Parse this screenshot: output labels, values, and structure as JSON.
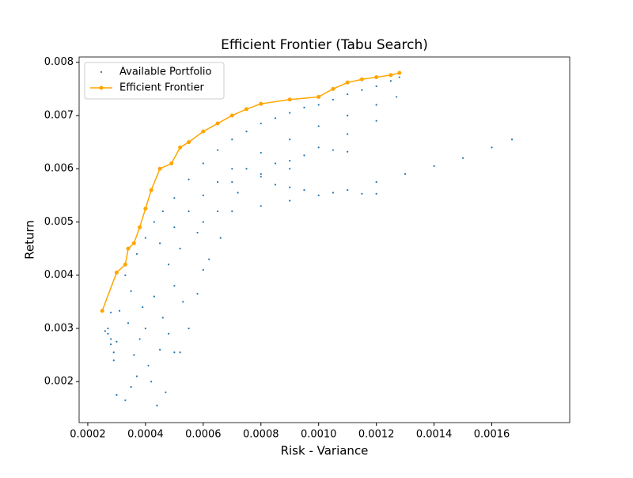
{
  "chart_data": {
    "type": "scatter",
    "title": "Efficient Frontier (Tabu Search)",
    "xlabel": "Risk - Variance",
    "ylabel": "Return",
    "xlim": [
      0.00017,
      0.00187
    ],
    "ylim": [
      0.00123,
      0.0081
    ],
    "xticks": [
      0.0002,
      0.0004,
      0.0006,
      0.0008,
      {
        "value": 0.001,
        "label": "0.0010"
      },
      0.0012,
      0.0014,
      0.0016
    ],
    "yticks": [
      0.002,
      0.003,
      0.004,
      0.005,
      0.006,
      0.007,
      0.008
    ],
    "legend": "upper left",
    "series": [
      {
        "name": "Available Portfolio",
        "color": "#1f77b4",
        "style": "points",
        "x": [
          0.00026,
          0.00027,
          0.00028,
          0.00028,
          0.00029,
          0.00029,
          0.00027,
          0.0003,
          0.00031,
          0.00028,
          0.0003,
          0.00033,
          0.00035,
          0.00037,
          0.00036,
          0.00038,
          0.0004,
          0.00041,
          0.00042,
          0.00044,
          0.00045,
          0.00046,
          0.00048,
          0.0005,
          0.00047,
          0.00052,
          0.00055,
          0.00058,
          0.00053,
          0.0005,
          0.00043,
          0.00039,
          0.00035,
          0.00034,
          0.00062,
          0.00066,
          0.0006,
          0.00033,
          0.00037,
          0.0004,
          0.00043,
          0.00046,
          0.0005,
          0.00055,
          0.0006,
          0.00065,
          0.0007,
          0.00075,
          0.0008,
          0.00085,
          0.0009,
          0.00095,
          0.001,
          0.00105,
          0.0011,
          0.00115,
          0.0012,
          0.00125,
          0.00128,
          0.00045,
          0.0005,
          0.00055,
          0.0006,
          0.00065,
          0.0007,
          0.0008,
          0.0009,
          0.001,
          0.0011,
          0.0012,
          0.00127,
          0.00048,
          0.00052,
          0.00058,
          0.00065,
          0.00072,
          0.0008,
          0.0009,
          0.001,
          0.0011,
          0.0012,
          0.0006,
          0.0007,
          0.0008,
          0.0009,
          0.001,
          0.0011,
          0.0012,
          0.0013,
          0.0014,
          0.0015,
          0.0016,
          0.00167,
          0.00085,
          0.0009,
          0.00095,
          0.00105,
          0.00115,
          0.0012,
          0.00075,
          0.00085,
          0.00095,
          0.00105,
          0.0011,
          0.0007,
          0.0008,
          0.0009
        ],
        "y": [
          0.00295,
          0.0029,
          0.0028,
          0.0027,
          0.00255,
          0.0024,
          0.003,
          0.00275,
          0.00333,
          0.0033,
          0.00175,
          0.00165,
          0.0019,
          0.0021,
          0.0025,
          0.0028,
          0.003,
          0.0023,
          0.002,
          0.00155,
          0.0026,
          0.0032,
          0.0029,
          0.00255,
          0.0018,
          0.00255,
          0.003,
          0.00365,
          0.0035,
          0.0038,
          0.0036,
          0.0034,
          0.0037,
          0.0031,
          0.0043,
          0.0047,
          0.0041,
          0.004,
          0.0044,
          0.0047,
          0.005,
          0.0052,
          0.00545,
          0.0058,
          0.0061,
          0.00635,
          0.00655,
          0.0067,
          0.00685,
          0.00695,
          0.00705,
          0.00715,
          0.0072,
          0.0073,
          0.0074,
          0.00748,
          0.00755,
          0.00765,
          0.00772,
          0.0046,
          0.0049,
          0.0052,
          0.0055,
          0.00575,
          0.006,
          0.0063,
          0.00655,
          0.0068,
          0.007,
          0.0072,
          0.00735,
          0.0042,
          0.0045,
          0.0048,
          0.0052,
          0.00555,
          0.00585,
          0.00615,
          0.0064,
          0.00665,
          0.0069,
          0.005,
          0.0052,
          0.0053,
          0.0054,
          0.0055,
          0.0056,
          0.00575,
          0.0059,
          0.00605,
          0.0062,
          0.0064,
          0.00655,
          0.0057,
          0.00565,
          0.0056,
          0.00555,
          0.00553,
          0.00553,
          0.006,
          0.0061,
          0.00625,
          0.00635,
          0.00632,
          0.00575,
          0.0059,
          0.006
        ]
      },
      {
        "name": "Efficient Frontier",
        "color": "#ffa500",
        "style": "line",
        "x": [
          0.00025,
          0.0003,
          0.00033,
          0.00034,
          0.00036,
          0.00038,
          0.0004,
          0.00042,
          0.00045,
          0.00049,
          0.00052,
          0.00055,
          0.0006,
          0.00065,
          0.0007,
          0.00075,
          0.0008,
          0.0009,
          0.001,
          0.00105,
          0.0011,
          0.00115,
          0.0012,
          0.00125,
          0.00128
        ],
        "y": [
          0.00333,
          0.00405,
          0.0042,
          0.0045,
          0.0046,
          0.0049,
          0.00525,
          0.0056,
          0.006,
          0.0061,
          0.0064,
          0.0065,
          0.0067,
          0.00685,
          0.007,
          0.00712,
          0.00722,
          0.0073,
          0.00735,
          0.0075,
          0.00762,
          0.00768,
          0.00772,
          0.00776,
          0.0078
        ]
      }
    ]
  }
}
